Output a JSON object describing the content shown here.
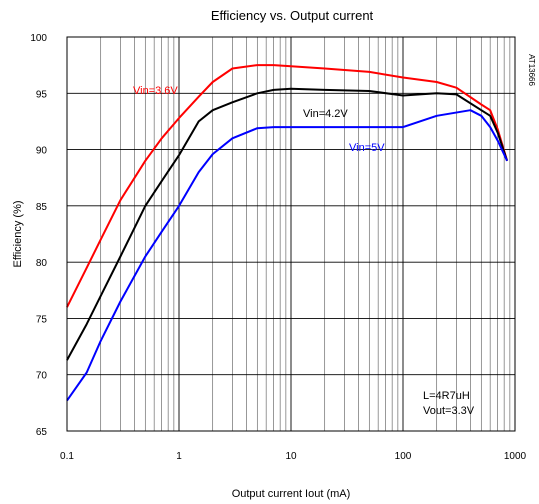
{
  "chart_data": {
    "type": "line",
    "title": "Efficiency vs. Output current",
    "xlabel": "Output current Iout  (mA)",
    "ylabel": "Efficiency  (%)",
    "x_scale": "log",
    "xlim": [
      0.1,
      1000
    ],
    "ylim": [
      65,
      100
    ],
    "x_ticks": [
      0.1,
      1,
      10,
      100,
      1000
    ],
    "x_tick_labels": [
      "0.1",
      "1",
      "10",
      "100",
      "1000"
    ],
    "y_ticks": [
      65,
      70,
      75,
      80,
      85,
      90,
      95,
      100
    ],
    "y_tick_labels": [
      "65",
      "70",
      "75",
      "80",
      "85",
      "90",
      "95",
      "100"
    ],
    "grid": true,
    "series": [
      {
        "name": "Vin=3.6V",
        "color": "#ff0000",
        "points": [
          [
            0.1,
            76
          ],
          [
            0.15,
            79.5
          ],
          [
            0.2,
            82
          ],
          [
            0.3,
            85.5
          ],
          [
            0.5,
            89
          ],
          [
            0.7,
            91
          ],
          [
            1,
            92.8
          ],
          [
            1.5,
            94.7
          ],
          [
            2,
            96
          ],
          [
            3,
            97.2
          ],
          [
            5,
            97.5
          ],
          [
            7,
            97.5
          ],
          [
            10,
            97.4
          ],
          [
            20,
            97.2
          ],
          [
            50,
            96.9
          ],
          [
            100,
            96.4
          ],
          [
            200,
            96
          ],
          [
            300,
            95.5
          ],
          [
            500,
            94
          ],
          [
            600,
            93.5
          ],
          [
            700,
            91.8
          ],
          [
            850,
            89
          ]
        ]
      },
      {
        "name": "Vin=4.2V",
        "color": "#000000",
        "points": [
          [
            0.1,
            71.3
          ],
          [
            0.15,
            74.5
          ],
          [
            0.2,
            77
          ],
          [
            0.3,
            80.5
          ],
          [
            0.5,
            85
          ],
          [
            0.7,
            87.2
          ],
          [
            1,
            89.5
          ],
          [
            1.5,
            92.5
          ],
          [
            2,
            93.5
          ],
          [
            3,
            94.2
          ],
          [
            5,
            95
          ],
          [
            7,
            95.3
          ],
          [
            10,
            95.4
          ],
          [
            20,
            95.3
          ],
          [
            50,
            95.2
          ],
          [
            100,
            94.8
          ],
          [
            200,
            95
          ],
          [
            300,
            94.9
          ],
          [
            500,
            93.5
          ],
          [
            600,
            93
          ],
          [
            700,
            91.5
          ],
          [
            850,
            89
          ]
        ]
      },
      {
        "name": "Vin=5V",
        "color": "#0000ff",
        "points": [
          [
            0.1,
            67.7
          ],
          [
            0.15,
            70.2
          ],
          [
            0.2,
            73
          ],
          [
            0.3,
            76.5
          ],
          [
            0.5,
            80.5
          ],
          [
            0.7,
            82.7
          ],
          [
            1,
            85
          ],
          [
            1.5,
            88
          ],
          [
            2,
            89.6
          ],
          [
            3,
            91
          ],
          [
            5,
            91.9
          ],
          [
            7,
            92
          ],
          [
            10,
            92
          ],
          [
            30,
            92
          ],
          [
            50,
            92
          ],
          [
            100,
            92
          ],
          [
            200,
            93
          ],
          [
            400,
            93.5
          ],
          [
            500,
            93
          ],
          [
            600,
            92
          ],
          [
            700,
            90.8
          ],
          [
            850,
            89
          ]
        ]
      }
    ],
    "annotations": [
      "L=4R7uH",
      "Vout=3.3V",
      "AT13666"
    ]
  }
}
